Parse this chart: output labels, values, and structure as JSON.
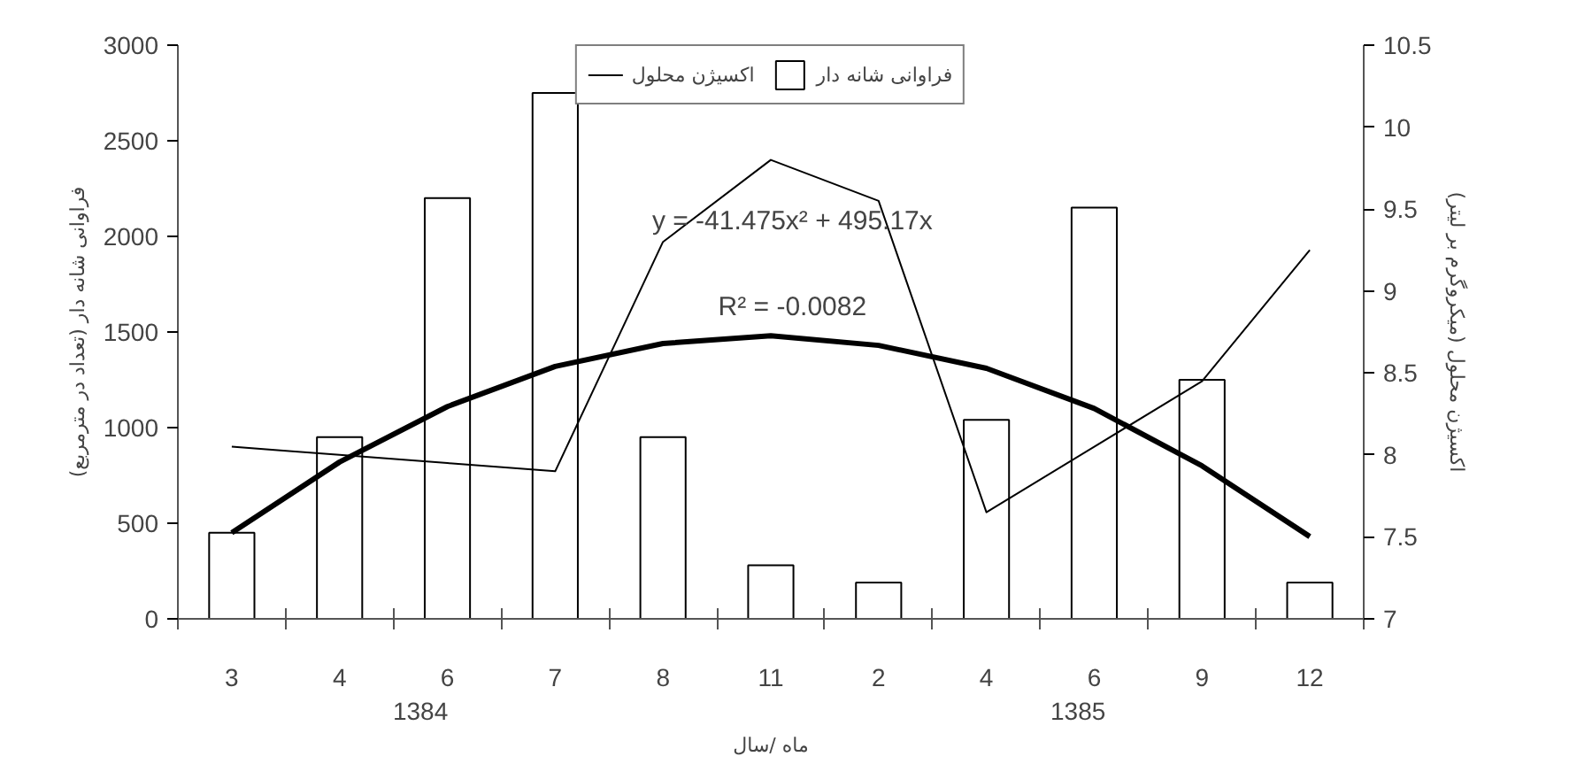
{
  "chart_data": {
    "type": "bar",
    "xlabel": "ماه /سال",
    "ylabel": "فراوانی شانه دار (تعداد در مترمربع)",
    "y2label": "اکسیژن محلول (میکروگرم بر لیتر)",
    "categories": [
      "3",
      "4",
      "6",
      "7",
      "8",
      "11",
      "2",
      "4",
      "6",
      "9",
      "12"
    ],
    "series": [
      {
        "name": "فراوانی شانه دار",
        "color": "#ffffff",
        "values": [
          450,
          950,
          2200,
          2750,
          950,
          280,
          190,
          1040,
          2150,
          1250,
          190
        ]
      },
      {
        "name": "اکسیژن محلول",
        "type": "line",
        "axis": "y2",
        "color": "#000000",
        "values": [
          8.05,
          8.0,
          7.95,
          7.9,
          9.3,
          9.8,
          9.55,
          7.65,
          8.05,
          8.45,
          9.25
        ]
      },
      {
        "type": "line",
        "color": "#000000",
        "values": [
          450,
          820,
          1110,
          1320,
          1440,
          1480,
          1430,
          1310,
          1100,
          800,
          430
        ]
      }
    ],
    "annotations": [
      "y = -41.475x² + 495.17x",
      "R² = -0.0082",
      "1384",
      "1385"
    ],
    "ylim": [
      0,
      3000
    ],
    "yticks": [
      0,
      500,
      1000,
      1500,
      2000,
      2500,
      3000
    ],
    "y2lim": [
      7,
      10.5
    ],
    "y2ticks": [
      7,
      7.5,
      8,
      8.5,
      9,
      9.5,
      10,
      10.5
    ],
    "grid": false,
    "legend": "top",
    "marker": "none",
    "line_style": "solid"
  }
}
